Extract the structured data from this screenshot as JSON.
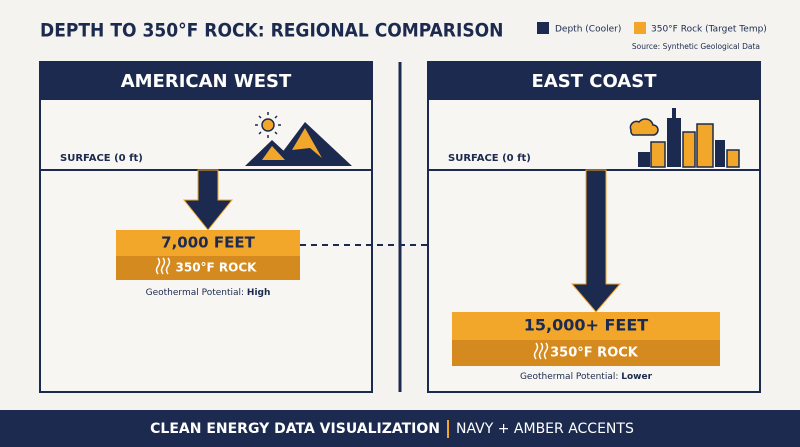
{
  "header": {
    "title": "DEPTH TO 350°F ROCK: REGIONAL COMPARISON",
    "legend": [
      {
        "label": "Depth (Cooler)",
        "color": "#1b2a4e"
      },
      {
        "label": "350°F Rock (Target Temp)",
        "color": "#f2a72b"
      }
    ],
    "source": "Source: Synthetic Geological Data"
  },
  "panels": [
    {
      "name": "AMERICAN WEST",
      "surface_label": "SURFACE (0 ft)",
      "depth_label": "7,000 FEET",
      "rock_label": "350°F ROCK",
      "potential_label": "Geothermal Potential:",
      "potential_value": "High"
    },
    {
      "name": "EAST COAST",
      "surface_label": "SURFACE (0 ft)",
      "depth_label": "15,000+ FEET",
      "rock_label": "350°F ROCK",
      "potential_label": "Geothermal Potential:",
      "potential_value": "Lower"
    }
  ],
  "footer": {
    "left": "CLEAN ENERGY DATA VISUALIZATION",
    "right": "NAVY + AMBER ACCENTS"
  }
}
